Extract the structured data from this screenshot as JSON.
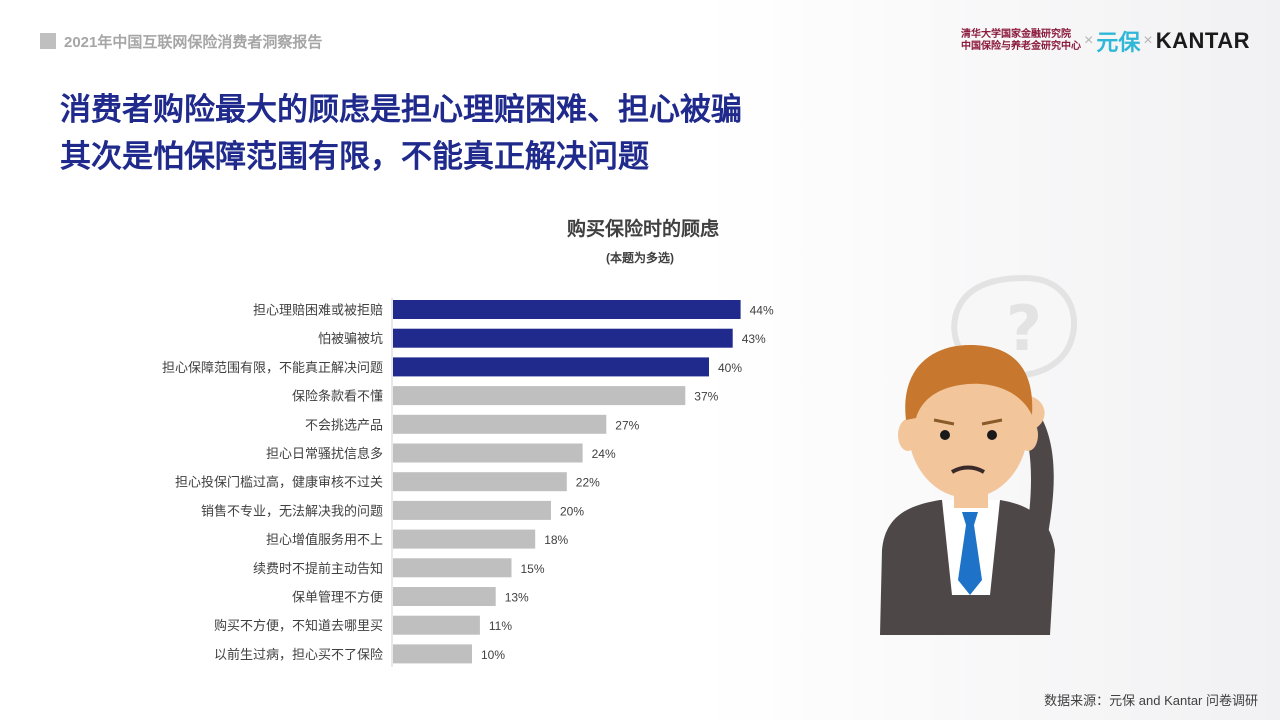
{
  "header": {
    "report_title": "2021年中国互联网保险消费者洞察报告"
  },
  "logos": {
    "tsinghua_line1": "清华大学国家金融研究院",
    "tsinghua_line2": "中国保险与养老金研究中心",
    "separator": "×",
    "yuanbao": "元保",
    "kantar": "KANTAR"
  },
  "headline": {
    "line1": "消费者购险最大的顾虑是担心理赔困难、担心被骗",
    "line2": "其次是怕保障范围有限，不能真正解决问题"
  },
  "chart_data": {
    "type": "bar",
    "orientation": "horizontal",
    "title": "购买保险时的顾虑",
    "subtitle": "(本题为多选)",
    "value_suffix": "%",
    "categories": [
      "担心理赔困难或被拒赔",
      "怕被骗被坑",
      "担心保障范围有限，不能真正解决问题",
      "保险条款看不懂",
      "不会挑选产品",
      "担心日常骚扰信息多",
      "担心投保门槛过高，健康审核不过关",
      "销售不专业，无法解决我的问题",
      "担心增值服务用不上",
      "续费时不提前主动告知",
      "保单管理不方便",
      "购买不方便，不知道去哪里买",
      "以前生过病，担心买不了保险"
    ],
    "values": [
      44,
      43,
      40,
      37,
      27,
      24,
      22,
      20,
      18,
      15,
      13,
      11,
      10
    ],
    "highlight_count": 3,
    "colors": {
      "highlight": "#1f2a8c",
      "normal": "#bfbfbf",
      "text": "#404040"
    }
  },
  "source": "数据来源：元保 and Kantar 问卷调研"
}
